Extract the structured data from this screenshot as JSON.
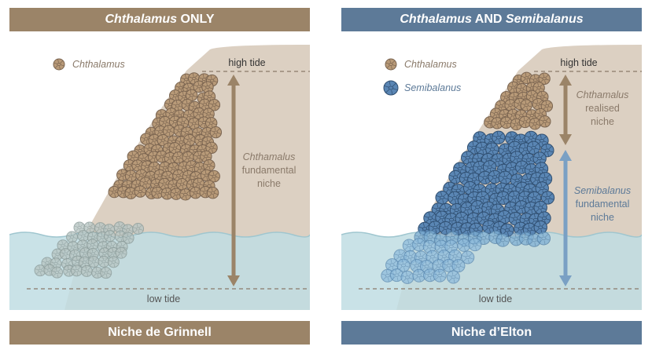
{
  "colors": {
    "tan": "#9b8468",
    "blue": "#5d7a98",
    "rock": "#dcd0c2",
    "water": "#bfdde3",
    "chthamalus": "#b89a78",
    "semibalanus": "#5a86b4"
  },
  "left": {
    "header_species": "Chthalamus",
    "header_suffix": " ONLY",
    "legend_chthamalus": "Chthalamus",
    "high_tide": "high tide",
    "low_tide": "low tide",
    "niche_line1": "Chthamalus",
    "niche_line2": "fundamental",
    "niche_line3": "niche",
    "footer": "Niche de Grinnell"
  },
  "right": {
    "header_species1": "Chthalamus",
    "header_middle": " AND ",
    "header_species2": "Semibalanus",
    "legend_chthamalus": "Chthalamus",
    "legend_semibalanus": "Semibalanus",
    "high_tide": "high tide",
    "low_tide": "low tide",
    "realised_line1": "Chthamalus",
    "realised_line2": "realised",
    "realised_line3": "niche",
    "fundamental_line1": "Semibalanus",
    "fundamental_line2": "fundamental",
    "fundamental_line3": "niche",
    "footer": "Niche d’Elton"
  },
  "icons": {
    "barnacle": "barnacle-icon",
    "arrow": "double-arrow-icon"
  }
}
